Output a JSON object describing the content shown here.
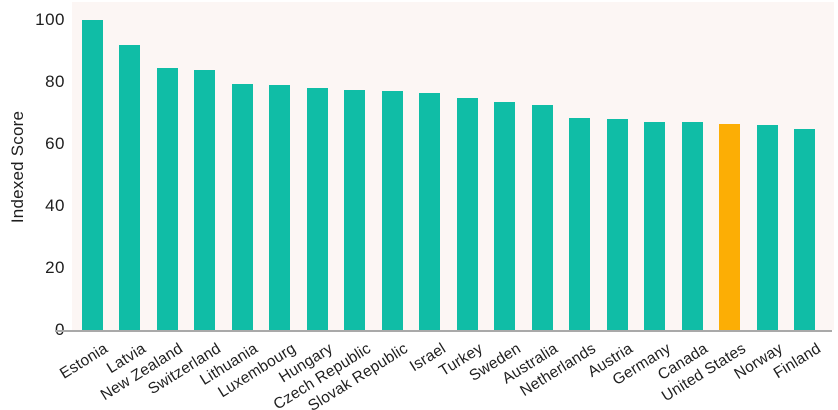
{
  "chart_data": {
    "type": "bar",
    "title": "",
    "xlabel": "",
    "ylabel": "Indexed Score",
    "ylim": [
      0,
      100
    ],
    "yticks": [
      0,
      20,
      40,
      60,
      80,
      100
    ],
    "grid": false,
    "legend_position": "none",
    "categories": [
      "Estonia",
      "Latvia",
      "New Zealand",
      "Switzerland",
      "Lithuania",
      "Luxembourg",
      "Hungary",
      "Czech Republic",
      "Slovak Republic",
      "Israel",
      "Turkey",
      "Sweden",
      "Australia",
      "Netherlands",
      "Austria",
      "Germany",
      "Canada",
      "United States",
      "Norway",
      "Finland"
    ],
    "values": [
      100,
      92,
      84.5,
      84,
      79.5,
      79,
      78,
      77.5,
      77,
      76.5,
      75,
      73.5,
      72.5,
      68.5,
      68,
      67,
      67,
      66.5,
      66,
      65
    ],
    "highlight_category": "United States",
    "colors": {
      "bar": "#10bda6",
      "highlight_bar": "#fcae05",
      "plot_background": "#fcf6f4",
      "axis_line": "#a9a9a9",
      "text": "#1e1e1e"
    }
  }
}
